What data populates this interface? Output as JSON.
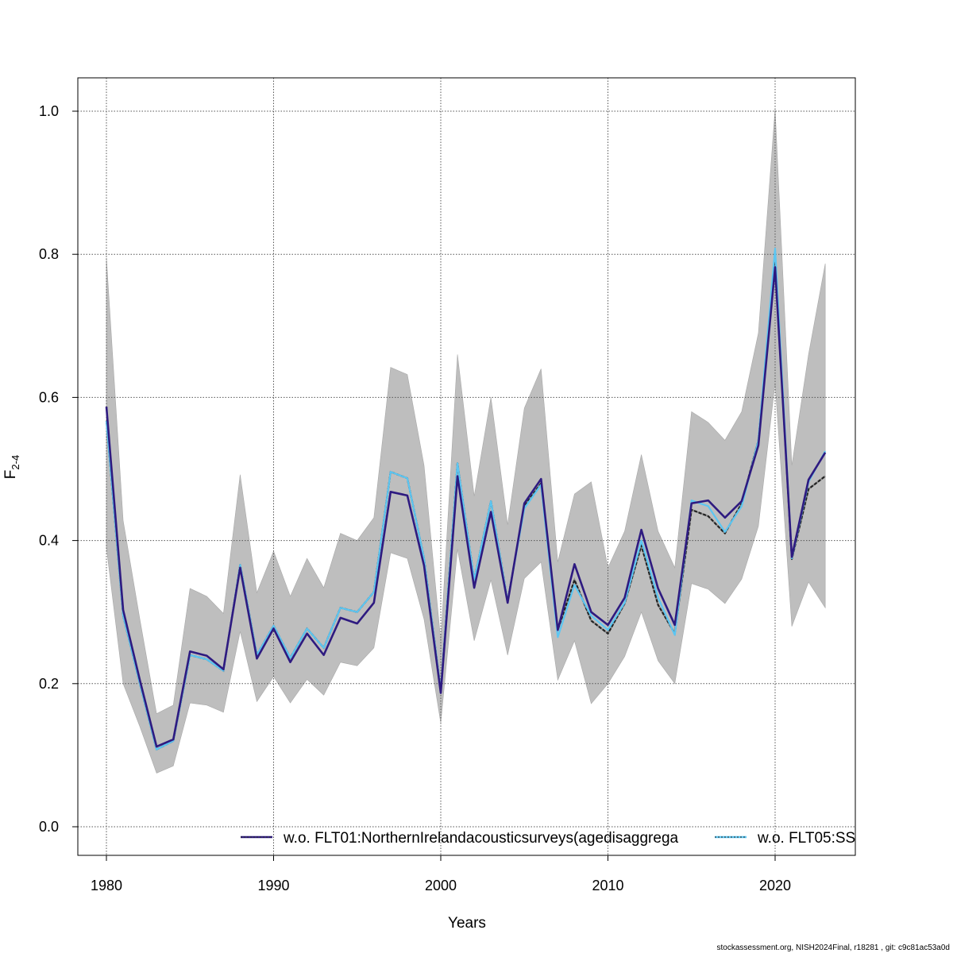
{
  "chart_data": {
    "type": "line",
    "title": "",
    "xlabel": "Years",
    "ylabel": "F",
    "ylabel_subscript": "2-4",
    "xlim": [
      1978.3,
      2024.7
    ],
    "ylim": [
      -0.04,
      1.05
    ],
    "xticks": [
      "1980",
      "1990",
      "2000",
      "2010",
      "2020"
    ],
    "yticks": [
      "0.0",
      "0.2",
      "0.4",
      "0.6",
      "0.8",
      "1.0"
    ],
    "grid": true,
    "legend_position": "bottom",
    "x": [
      1980,
      1981,
      1982,
      1983,
      1984,
      1985,
      1986,
      1987,
      1988,
      1989,
      1990,
      1991,
      1992,
      1993,
      1994,
      1995,
      1996,
      1997,
      1998,
      1999,
      2000,
      2001,
      2002,
      2003,
      2004,
      2005,
      2006,
      2007,
      2008,
      2009,
      2010,
      2011,
      2012,
      2013,
      2014,
      2015,
      2016,
      2017,
      2018,
      2019,
      2020,
      2021,
      2022,
      2023
    ],
    "confidence_band": {
      "upper": [
        0.795,
        0.428,
        0.29,
        0.158,
        0.17,
        0.333,
        0.322,
        0.298,
        0.492,
        0.327,
        0.385,
        0.322,
        0.375,
        0.334,
        0.41,
        0.4,
        0.432,
        0.642,
        0.632,
        0.505,
        0.26,
        0.66,
        0.462,
        0.6,
        0.422,
        0.585,
        0.64,
        0.37,
        0.465,
        0.482,
        0.362,
        0.413,
        0.52,
        0.413,
        0.362,
        0.58,
        0.565,
        0.54,
        0.58,
        0.69,
        1.003,
        0.505,
        0.66,
        0.787
      ],
      "lower": [
        0.39,
        0.2,
        0.14,
        0.075,
        0.085,
        0.173,
        0.17,
        0.16,
        0.273,
        0.175,
        0.21,
        0.173,
        0.206,
        0.184,
        0.23,
        0.225,
        0.25,
        0.383,
        0.375,
        0.29,
        0.145,
        0.388,
        0.26,
        0.345,
        0.24,
        0.347,
        0.37,
        0.205,
        0.26,
        0.172,
        0.2,
        0.238,
        0.3,
        0.232,
        0.2,
        0.34,
        0.332,
        0.312,
        0.346,
        0.42,
        0.62,
        0.28,
        0.342,
        0.306
      ]
    },
    "series": [
      {
        "name": "",
        "color": "#222222",
        "values": [
          0.567,
          0.295,
          0.2,
          0.108,
          0.12,
          0.24,
          0.234,
          0.218,
          0.366,
          0.24,
          0.281,
          0.236,
          0.277,
          0.25,
          0.306,
          0.3,
          0.328,
          0.496,
          0.487,
          0.375,
          0.19,
          0.508,
          0.345,
          0.455,
          0.315,
          0.448,
          0.48,
          0.275,
          0.345,
          0.288,
          0.27,
          0.312,
          0.393,
          0.31,
          0.27,
          0.443,
          0.434,
          0.41,
          0.452,
          0.54,
          0.79,
          0.374,
          0.472,
          0.49
        ]
      },
      {
        "name": "w.o. FLT01:NorthernIrelandacousticsurveys(agedisaggrega",
        "color": "#2e1a80",
        "values": [
          0.587,
          0.303,
          0.205,
          0.112,
          0.122,
          0.245,
          0.239,
          0.22,
          0.362,
          0.235,
          0.277,
          0.23,
          0.27,
          0.24,
          0.292,
          0.284,
          0.313,
          0.468,
          0.463,
          0.365,
          0.187,
          0.49,
          0.334,
          0.44,
          0.313,
          0.452,
          0.486,
          0.275,
          0.367,
          0.3,
          0.282,
          0.32,
          0.415,
          0.333,
          0.282,
          0.452,
          0.456,
          0.432,
          0.455,
          0.533,
          0.782,
          0.377,
          0.485,
          0.523
        ]
      },
      {
        "name": "w.o. FLT05:SS",
        "color": "#5cc6f2",
        "values": [
          0.567,
          0.295,
          0.2,
          0.108,
          0.12,
          0.24,
          0.234,
          0.218,
          0.366,
          0.24,
          0.281,
          0.236,
          0.277,
          0.25,
          0.306,
          0.3,
          0.328,
          0.496,
          0.487,
          0.375,
          0.19,
          0.508,
          0.345,
          0.455,
          0.315,
          0.445,
          0.478,
          0.265,
          0.338,
          0.295,
          0.275,
          0.313,
          0.4,
          0.32,
          0.268,
          0.456,
          0.448,
          0.412,
          0.448,
          0.54,
          0.808,
          0.375,
          0.482,
          0.525
        ]
      }
    ]
  },
  "footer": "stockassessment.org, NISH2024Final, r18281 , git: c9c81ac53a0d"
}
